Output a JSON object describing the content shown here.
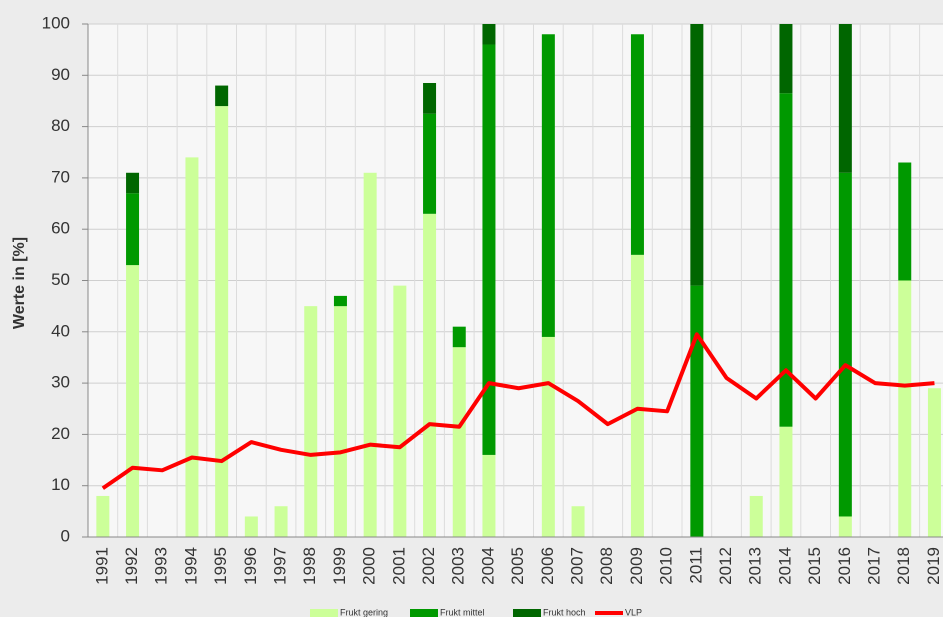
{
  "chart_data": {
    "type": "bar",
    "stacked": true,
    "y_label": "Werte in [%]",
    "categories": [
      "1991",
      "1992",
      "1993",
      "1994",
      "1995",
      "1996",
      "1997",
      "1998",
      "1999",
      "2000",
      "2001",
      "2002",
      "2003",
      "2004",
      "2005",
      "2006",
      "2007",
      "2008",
      "2009",
      "2010",
      "2011",
      "2012",
      "2013",
      "2014",
      "2015",
      "2016",
      "2017",
      "2018",
      "2019"
    ],
    "series": [
      {
        "name": "Frukt gering",
        "color": "#ccff99",
        "values": [
          8,
          53,
          0,
          74,
          84,
          4,
          6,
          45,
          45,
          71,
          49,
          63,
          37,
          16,
          0,
          39,
          6,
          0,
          55,
          0,
          0,
          0,
          8,
          21.5,
          0,
          4,
          0,
          50,
          29
        ]
      },
      {
        "name": "Frukt mittel",
        "color": "#009900",
        "values": [
          0,
          14,
          0,
          0,
          0,
          0,
          0,
          0,
          2,
          0,
          0,
          19.5,
          4,
          80,
          0,
          59,
          0,
          0,
          43,
          0,
          49,
          0,
          0,
          65,
          0,
          67,
          0,
          23,
          0
        ]
      },
      {
        "name": "Frukt hoch",
        "color": "#006600",
        "values": [
          0,
          4,
          0,
          0,
          4,
          0,
          0,
          0,
          0,
          0,
          0,
          6,
          0,
          4,
          0,
          0,
          0,
          0,
          0,
          0,
          51,
          0,
          0,
          13.5,
          0,
          29,
          0,
          0,
          0
        ]
      },
      {
        "name": "VLP",
        "type": "line",
        "color": "#ff0000",
        "values": [
          9.5,
          13.5,
          13,
          15.5,
          14.8,
          18.5,
          17,
          16,
          16.5,
          18,
          17.5,
          22,
          21.5,
          30,
          29,
          30,
          26.5,
          22,
          25,
          24.5,
          39.5,
          31,
          27,
          32.5,
          27,
          33.5,
          30,
          29.5,
          30
        ]
      }
    ],
    "ylim": [
      0,
      100
    ],
    "yticks": [
      0,
      10,
      20,
      30,
      40,
      50,
      60,
      70,
      80,
      90,
      100
    ],
    "grid": true,
    "legend": "bottom"
  }
}
